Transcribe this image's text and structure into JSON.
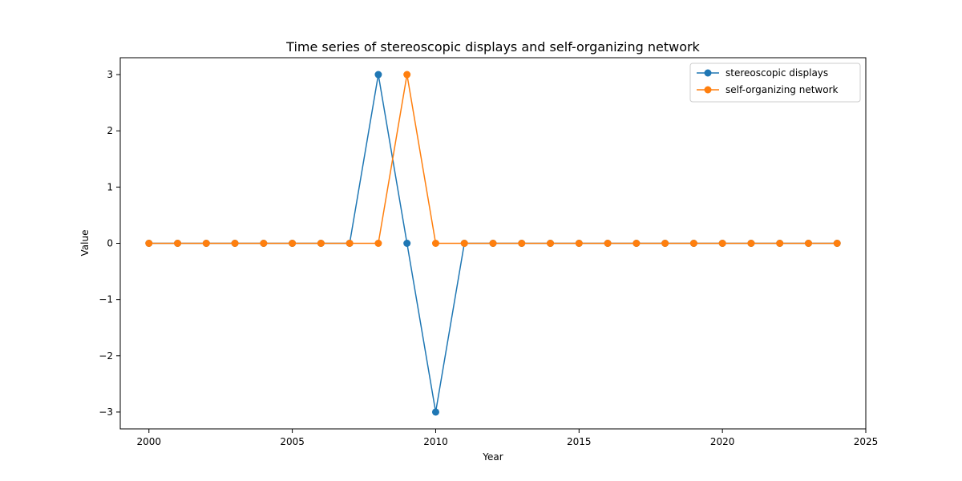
{
  "chart_data": {
    "type": "line",
    "title": "Time series of stereoscopic displays and self-organizing network",
    "xlabel": "Year",
    "ylabel": "Value",
    "xlim": [
      1999,
      2025
    ],
    "ylim": [
      -3.3,
      3.3
    ],
    "xticks": [
      2000,
      2005,
      2010,
      2015,
      2020,
      2025
    ],
    "yticks": [
      -3,
      -2,
      -1,
      0,
      1,
      2,
      3
    ],
    "ytick_labels": [
      "−3",
      "−2",
      "−1",
      "0",
      "1",
      "2",
      "3"
    ],
    "legend_position": "top-right",
    "grid": false,
    "x": [
      2000,
      2001,
      2002,
      2003,
      2004,
      2005,
      2006,
      2007,
      2008,
      2009,
      2010,
      2011,
      2012,
      2013,
      2014,
      2015,
      2016,
      2017,
      2018,
      2019,
      2020,
      2021,
      2022,
      2023,
      2024
    ],
    "series": [
      {
        "name": "stereoscopic displays",
        "color": "#1f77b4",
        "values": [
          0,
          0,
          0,
          0,
          0,
          0,
          0,
          0,
          3,
          0,
          -3,
          0,
          0,
          0,
          0,
          0,
          0,
          0,
          0,
          0,
          0,
          0,
          0,
          0,
          0
        ]
      },
      {
        "name": "self-organizing network",
        "color": "#ff7f0e",
        "values": [
          0,
          0,
          0,
          0,
          0,
          0,
          0,
          0,
          0,
          3,
          0,
          0,
          0,
          0,
          0,
          0,
          0,
          0,
          0,
          0,
          0,
          0,
          0,
          0,
          0
        ]
      }
    ]
  }
}
